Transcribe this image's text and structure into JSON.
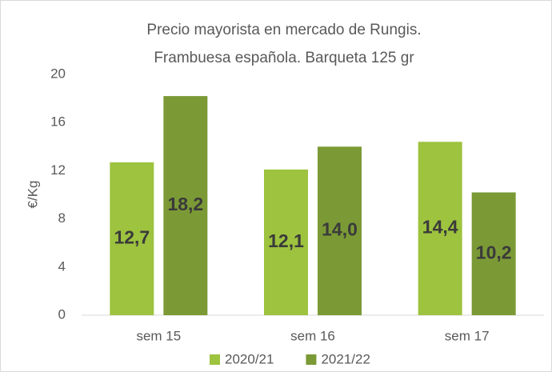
{
  "chart_data": {
    "type": "bar",
    "title": [
      "Precio mayorista en mercado de Rungis.",
      "Frambuesa española. Barqueta 125 gr"
    ],
    "y_label": "€/Kg",
    "categories": [
      "sem 15",
      "sem 16",
      "sem 17"
    ],
    "series": [
      {
        "name": "2020/21",
        "color": "#9dc33f",
        "values": [
          12.7,
          12.1,
          14.4
        ],
        "value_labels": [
          "12,7",
          "12,1",
          "14,4"
        ]
      },
      {
        "name": "2021/22",
        "color": "#7b9a36",
        "values": [
          18.2,
          14.0,
          10.2
        ],
        "value_labels": [
          "18,2",
          "14,0",
          "10,2"
        ]
      }
    ],
    "ylim": [
      0,
      20
    ],
    "yticks": [
      0,
      4,
      8,
      12,
      16,
      20
    ],
    "grid": false,
    "legend": "bottom"
  }
}
